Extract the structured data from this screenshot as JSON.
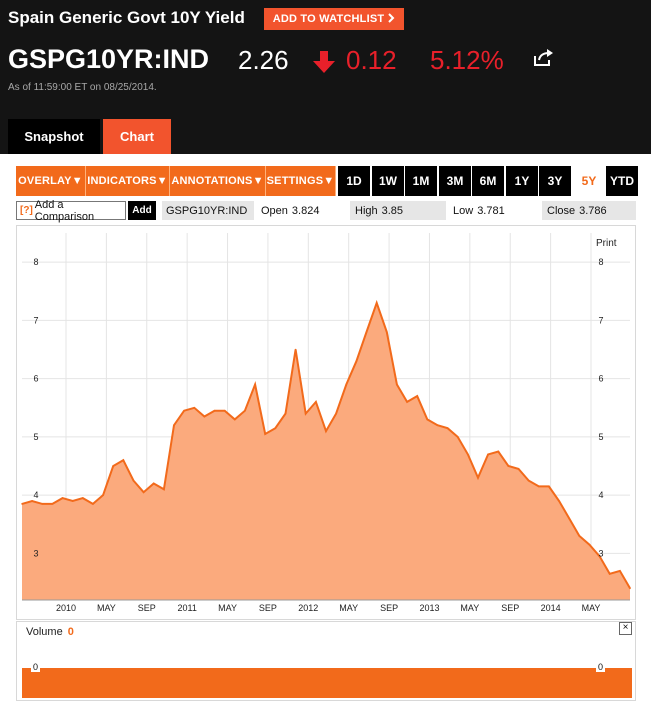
{
  "header": {
    "title": "Spain Generic Govt 10Y Yield",
    "watchlist_label": "ADD TO WATCHLIST",
    "ticker": "GSPG10YR:IND",
    "price": "2.26",
    "change": "0.12",
    "change_pct": "5.12%",
    "as_of_prefix": "As of",
    "as_of_time": "11:59:00 ET",
    "as_of_on": "on",
    "as_of_date": "08/25/2014."
  },
  "colors": {
    "accent": "#f2542d",
    "orange": "#f26a1b",
    "down": "#e8202a",
    "area_fill": "#fbaa7d"
  },
  "tabs": [
    {
      "label": "Snapshot"
    },
    {
      "label": "Chart"
    }
  ],
  "toolbar": {
    "menus": [
      "OVERLAY",
      "INDICATORS",
      "ANNOTATIONS",
      "SETTINGS"
    ],
    "ranges": [
      "1D",
      "1W",
      "1M",
      "3M",
      "6M",
      "1Y",
      "3Y",
      "5Y",
      "YTD"
    ],
    "active_range": "5Y"
  },
  "infobar": {
    "compare_icon": "[?]",
    "compare_placeholder": "Add a Comparison",
    "add_label": "Add",
    "symbol": "GSPG10YR:IND",
    "open_label": "Open",
    "open": "3.824",
    "high_label": "High",
    "high": "3.85",
    "low_label": "Low",
    "low": "3.781",
    "close_label": "Close",
    "close": "3.786"
  },
  "print_label": "Print",
  "chart_data": {
    "type": "area",
    "x_ticks": [
      "2010",
      "MAY",
      "SEP",
      "2011",
      "MAY",
      "SEP",
      "2012",
      "MAY",
      "SEP",
      "2013",
      "MAY",
      "SEP",
      "2014",
      "MAY"
    ],
    "y_ticks": [
      "3",
      "4",
      "5",
      "6",
      "7",
      "8"
    ],
    "ylim": [
      2.2,
      8.5
    ],
    "x": [
      "2009-08",
      "2009-09",
      "2009-10",
      "2009-11",
      "2009-12",
      "2010-01",
      "2010-02",
      "2010-03",
      "2010-04",
      "2010-05",
      "2010-06",
      "2010-07",
      "2010-08",
      "2010-09",
      "2010-10",
      "2010-11",
      "2010-12",
      "2011-01",
      "2011-02",
      "2011-03",
      "2011-04",
      "2011-05",
      "2011-06",
      "2011-07",
      "2011-08",
      "2011-09",
      "2011-10",
      "2011-11",
      "2011-12",
      "2012-01",
      "2012-02",
      "2012-03",
      "2012-04",
      "2012-05",
      "2012-06",
      "2012-07",
      "2012-08",
      "2012-09",
      "2012-10",
      "2012-11",
      "2012-12",
      "2013-01",
      "2013-02",
      "2013-03",
      "2013-04",
      "2013-05",
      "2013-06",
      "2013-07",
      "2013-08",
      "2013-09",
      "2013-10",
      "2013-11",
      "2013-12",
      "2014-01",
      "2014-02",
      "2014-03",
      "2014-04",
      "2014-05",
      "2014-06",
      "2014-07",
      "2014-08"
    ],
    "values": [
      3.85,
      3.9,
      3.85,
      3.85,
      3.95,
      3.9,
      3.95,
      3.85,
      4.0,
      4.5,
      4.6,
      4.25,
      4.05,
      4.2,
      4.1,
      5.2,
      5.45,
      5.5,
      5.35,
      5.45,
      5.45,
      5.3,
      5.45,
      5.9,
      5.05,
      5.15,
      5.4,
      6.5,
      5.4,
      5.6,
      5.1,
      5.4,
      5.9,
      6.3,
      6.8,
      7.3,
      6.8,
      5.9,
      5.6,
      5.7,
      5.3,
      5.2,
      5.15,
      5.0,
      4.7,
      4.3,
      4.7,
      4.75,
      4.5,
      4.45,
      4.25,
      4.15,
      4.15,
      3.9,
      3.6,
      3.3,
      3.15,
      2.95,
      2.65,
      2.7,
      2.4
    ],
    "volume_label": "Volume",
    "volume_value": "0",
    "volume_tick": "0"
  }
}
